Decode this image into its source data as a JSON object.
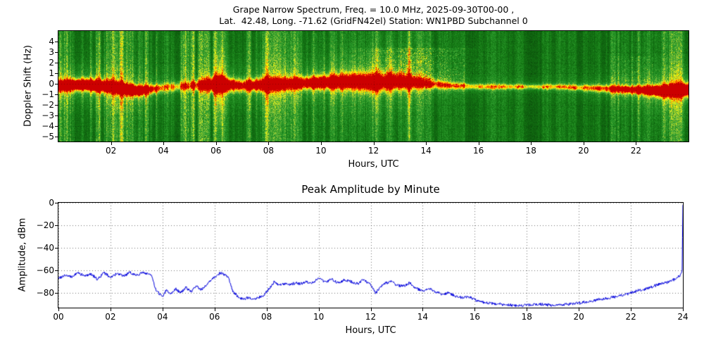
{
  "figure": {
    "background": "#ffffff",
    "text_color": "#000000"
  },
  "chart_data": [
    {
      "type": "heatmap",
      "title_line1": "Grape Narrow Spectrum, Freq. = 10.0 MHz, 2025-09-30T00-00 ,",
      "title_line2": "Lat.  42.48, Long. -71.62 (GridFN42el) Station: WN1PBD Subchannel 0",
      "xlabel": "Hours, UTC",
      "ylabel": "Doppler Shift (Hz)",
      "xlim": [
        0,
        24
      ],
      "ylim": [
        -5.5,
        5.0
      ],
      "xtick_values": [
        2,
        4,
        6,
        8,
        10,
        12,
        14,
        16,
        18,
        20,
        22
      ],
      "xtick_labels": [
        "02",
        "04",
        "06",
        "08",
        "10",
        "12",
        "14",
        "16",
        "18",
        "20",
        "22"
      ],
      "ytick_values": [
        4,
        3,
        2,
        1,
        0,
        -1,
        -2,
        -3,
        -4,
        -5
      ],
      "ytick_labels": [
        "4",
        "3",
        "2",
        "1",
        "0",
        "−1",
        "−2",
        "−3",
        "−4",
        "−5"
      ],
      "grid": true,
      "seed": 42,
      "colormap": [
        {
          "v": 0.0,
          "c": "#0a4a0a"
        },
        {
          "v": 0.3,
          "c": "#157a15"
        },
        {
          "v": 0.5,
          "c": "#2fa02f"
        },
        {
          "v": 0.62,
          "c": "#7fbf3f"
        },
        {
          "v": 0.7,
          "c": "#c8e028"
        },
        {
          "v": 0.78,
          "c": "#ffff00"
        },
        {
          "v": 0.86,
          "c": "#ffa500"
        },
        {
          "v": 0.93,
          "c": "#ff3300"
        },
        {
          "v": 1.0,
          "c": "#cc0000"
        }
      ],
      "ridge_hours": [
        0,
        1,
        2,
        3,
        4,
        5,
        6,
        7,
        8,
        9,
        10,
        11,
        12,
        13,
        14,
        15,
        16,
        17,
        18,
        19,
        20,
        21,
        22,
        23,
        24
      ],
      "ridge_center_hz": [
        -0.2,
        -0.1,
        -0.3,
        -0.7,
        -0.4,
        -0.2,
        -0.05,
        -0.2,
        -0.1,
        0.0,
        0.1,
        0.2,
        0.1,
        0.2,
        0.0,
        -0.2,
        -0.3,
        -0.3,
        -0.3,
        -0.3,
        -0.4,
        -0.5,
        -0.6,
        -0.7,
        -0.6
      ],
      "ridge_intensity": [
        1.0,
        1.0,
        1.0,
        0.95,
        0.5,
        0.45,
        1.0,
        0.7,
        0.85,
        0.75,
        0.85,
        0.8,
        0.85,
        0.8,
        0.65,
        0.55,
        0.5,
        0.48,
        0.48,
        0.5,
        0.55,
        0.65,
        0.75,
        0.95,
        1.0
      ],
      "ridge_width_hz": [
        0.35,
        0.4,
        0.4,
        0.35,
        0.3,
        0.3,
        0.5,
        0.4,
        0.45,
        0.4,
        0.45,
        0.55,
        0.6,
        0.55,
        0.35,
        0.25,
        0.2,
        0.18,
        0.18,
        0.18,
        0.22,
        0.28,
        0.3,
        0.4,
        0.45
      ],
      "background_level": [
        0.4,
        0.42,
        0.42,
        0.4,
        0.37,
        0.35,
        0.4,
        0.37,
        0.36,
        0.35,
        0.35,
        0.36,
        0.36,
        0.34,
        0.3,
        0.27,
        0.26,
        0.25,
        0.25,
        0.26,
        0.27,
        0.3,
        0.33,
        0.36,
        0.36
      ],
      "column_noise_gain": [
        1.5,
        1.5,
        1.5,
        1.5,
        1.4,
        1.4,
        1.3,
        1.2,
        0.9,
        0.9,
        0.9,
        0.9,
        0.9,
        0.9,
        0.8,
        0.7,
        0.7,
        0.7,
        0.7,
        0.7,
        0.8,
        0.9,
        1.0,
        1.1,
        1.1
      ],
      "streaks": [
        {
          "t": 6.15,
          "amp": 0.4,
          "sigma": 0.1
        },
        {
          "t": 5.55,
          "amp": -0.14,
          "sigma": 0.18
        },
        {
          "t": 4.35,
          "amp": 0.16,
          "sigma": 0.05
        },
        {
          "t": 4.75,
          "amp": 0.14,
          "sigma": 0.04
        },
        {
          "t": 7.95,
          "amp": 0.2,
          "sigma": 0.06
        },
        {
          "t": 9.05,
          "amp": 0.16,
          "sigma": 0.05
        },
        {
          "t": 10.45,
          "amp": 0.18,
          "sigma": 0.06
        },
        {
          "t": 12.15,
          "amp": 0.22,
          "sigma": 0.07
        },
        {
          "t": 12.65,
          "amp": 0.18,
          "sigma": 0.05
        },
        {
          "t": 13.35,
          "amp": 0.3,
          "sigma": 0.06
        },
        {
          "t": 23.6,
          "amp": 0.14,
          "sigma": 0.12
        }
      ],
      "speckle_regions": [
        {
          "t0": 10.8,
          "t1": 16.5,
          "d0": 0.3,
          "d1": 3.4,
          "amp": 0.3
        },
        {
          "t0": 20.5,
          "t1": 23.2,
          "d0": 0.2,
          "d1": 2.6,
          "amp": 0.16
        },
        {
          "t0": 4.0,
          "t1": 5.6,
          "d0": -4.5,
          "d1": 4.6,
          "amp": 0.1
        }
      ]
    },
    {
      "type": "line",
      "title": "Peak Amplitude by Minute",
      "xlabel": "Hours, UTC",
      "ylabel": "Amplitude, dBm",
      "xlim": [
        0,
        24
      ],
      "ylim": [
        -93,
        0
      ],
      "xtick_values": [
        0,
        2,
        4,
        6,
        8,
        10,
        12,
        14,
        16,
        18,
        20,
        22,
        24
      ],
      "xtick_labels": [
        "00",
        "02",
        "04",
        "06",
        "08",
        "10",
        "12",
        "14",
        "16",
        "18",
        "20",
        "22",
        "24"
      ],
      "ytick_values": [
        0,
        -20,
        -40,
        -60,
        -80
      ],
      "ytick_labels": [
        "0",
        "−20",
        "−40",
        "−60",
        "−80"
      ],
      "line_color": "#0000dd",
      "grid": true,
      "noise_db": 1.3,
      "points": [
        [
          0,
          -67
        ],
        [
          0.25,
          -64
        ],
        [
          0.5,
          -66
        ],
        [
          0.75,
          -62
        ],
        [
          1,
          -65
        ],
        [
          1.25,
          -63
        ],
        [
          1.5,
          -68
        ],
        [
          1.75,
          -62
        ],
        [
          2,
          -66
        ],
        [
          2.25,
          -63
        ],
        [
          2.5,
          -65
        ],
        [
          2.75,
          -62
        ],
        [
          3,
          -64
        ],
        [
          3.25,
          -62
        ],
        [
          3.5,
          -63
        ],
        [
          3.6,
          -66
        ],
        [
          3.75,
          -78
        ],
        [
          4,
          -83
        ],
        [
          4.15,
          -77
        ],
        [
          4.3,
          -81
        ],
        [
          4.5,
          -76
        ],
        [
          4.7,
          -80
        ],
        [
          4.9,
          -75
        ],
        [
          5.1,
          -79
        ],
        [
          5.3,
          -74
        ],
        [
          5.5,
          -77
        ],
        [
          5.7,
          -73
        ],
        [
          5.9,
          -68
        ],
        [
          6.1,
          -64
        ],
        [
          6.25,
          -62
        ],
        [
          6.4,
          -64
        ],
        [
          6.55,
          -67
        ],
        [
          6.7,
          -79
        ],
        [
          6.9,
          -83
        ],
        [
          7.1,
          -86
        ],
        [
          7.3,
          -84
        ],
        [
          7.5,
          -85
        ],
        [
          7.7,
          -84
        ],
        [
          7.9,
          -82
        ],
        [
          8.1,
          -76
        ],
        [
          8.3,
          -70
        ],
        [
          8.5,
          -73
        ],
        [
          8.7,
          -72
        ],
        [
          8.9,
          -73
        ],
        [
          9.1,
          -71
        ],
        [
          9.3,
          -72
        ],
        [
          9.5,
          -70
        ],
        [
          9.75,
          -71
        ],
        [
          10,
          -67
        ],
        [
          10.25,
          -70
        ],
        [
          10.5,
          -68
        ],
        [
          10.75,
          -71
        ],
        [
          11,
          -68
        ],
        [
          11.25,
          -70
        ],
        [
          11.5,
          -72
        ],
        [
          11.75,
          -68
        ],
        [
          12,
          -73
        ],
        [
          12.2,
          -80
        ],
        [
          12.4,
          -74
        ],
        [
          12.6,
          -71
        ],
        [
          12.8,
          -70
        ],
        [
          13,
          -73
        ],
        [
          13.25,
          -74
        ],
        [
          13.5,
          -71
        ],
        [
          13.75,
          -76
        ],
        [
          14,
          -78
        ],
        [
          14.25,
          -76
        ],
        [
          14.5,
          -79
        ],
        [
          14.75,
          -81
        ],
        [
          15,
          -80
        ],
        [
          15.25,
          -83
        ],
        [
          15.5,
          -84
        ],
        [
          15.75,
          -83
        ],
        [
          16,
          -86
        ],
        [
          16.25,
          -88
        ],
        [
          16.5,
          -89
        ],
        [
          17,
          -90
        ],
        [
          17.5,
          -91
        ],
        [
          18,
          -91
        ],
        [
          18.5,
          -90
        ],
        [
          19,
          -91
        ],
        [
          19.5,
          -90
        ],
        [
          20,
          -89
        ],
        [
          20.5,
          -87
        ],
        [
          21,
          -85
        ],
        [
          21.5,
          -83
        ],
        [
          22,
          -80
        ],
        [
          22.25,
          -78
        ],
        [
          22.5,
          -77
        ],
        [
          22.75,
          -75
        ],
        [
          23,
          -73
        ],
        [
          23.25,
          -71
        ],
        [
          23.5,
          -70
        ],
        [
          23.75,
          -67
        ],
        [
          23.9,
          -64
        ],
        [
          23.97,
          -60
        ],
        [
          24,
          -2
        ]
      ]
    }
  ]
}
